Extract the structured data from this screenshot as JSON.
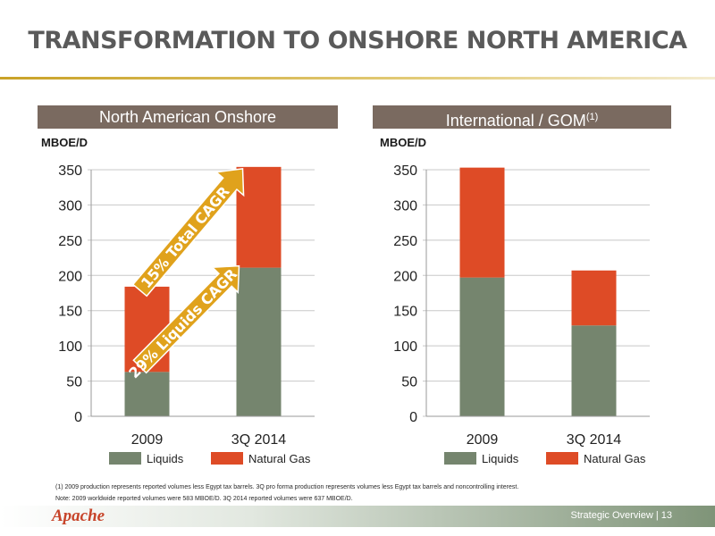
{
  "title": "TRANSFORMATION TO ONSHORE NORTH AMERICA",
  "panels": [
    {
      "header": "North American Onshore",
      "unit": "MBOE/D"
    },
    {
      "header": "International / GOM",
      "header_sup": "(1)",
      "unit": "MBOE/D"
    }
  ],
  "annotations": {
    "total_cagr": "15% Total CAGR",
    "liquids_cagr": "29% Liquids CAGR"
  },
  "footnote": "(1)     2009 production represents reported volumes less Egypt tax barrels. 3Q pro forma production represents volumes less Egypt tax barrels and noncontrolling interest.",
  "note": "Note: 2009 worldwide reported volumes were 583 MBOE/D. 3Q 2014 reported volumes were 637 MBOE/D.",
  "footer": {
    "logo": "Apache",
    "text": "Strategic Overview  |  13"
  },
  "colors": {
    "liquids": "#75856e",
    "natural_gas": "#de4b26",
    "arrow": "#e0a21c",
    "header_bg": "#7a6a60"
  },
  "chart_data": [
    {
      "type": "bar",
      "stacked": true,
      "categories": [
        "2009",
        "3Q 2014"
      ],
      "series": [
        {
          "name": "Liquids",
          "values": [
            63,
            211
          ]
        },
        {
          "name": "Natural Gas",
          "values": [
            121,
            143
          ]
        }
      ],
      "ylabel": "MBOE/D",
      "ylim": [
        0,
        350
      ],
      "yticks": [
        0,
        50,
        100,
        150,
        200,
        250,
        300,
        350
      ],
      "grid": true,
      "legend": "bottom"
    },
    {
      "type": "bar",
      "stacked": true,
      "categories": [
        "2009",
        "3Q 2014"
      ],
      "series": [
        {
          "name": "Liquids",
          "values": [
            197,
            129
          ]
        },
        {
          "name": "Natural Gas",
          "values": [
            156,
            78
          ]
        }
      ],
      "ylabel": "MBOE/D",
      "ylim": [
        0,
        350
      ],
      "yticks": [
        0,
        50,
        100,
        150,
        200,
        250,
        300,
        350
      ],
      "grid": true,
      "legend": "bottom"
    }
  ]
}
